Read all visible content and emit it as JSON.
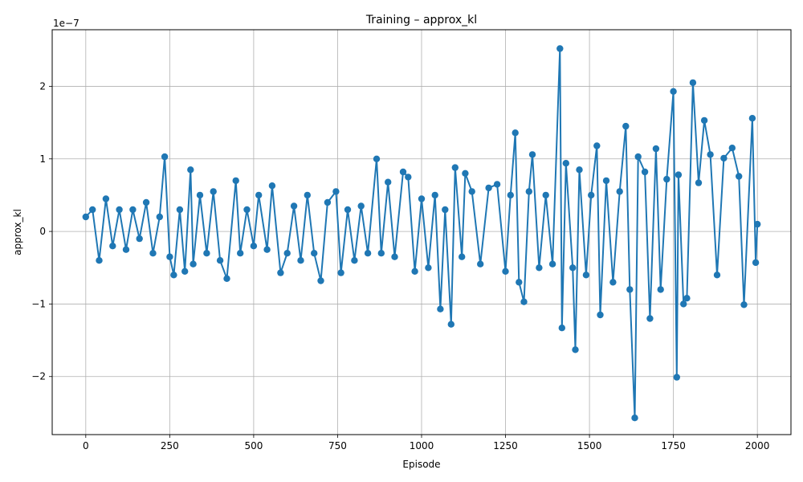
{
  "chart_data": {
    "type": "line",
    "title": "Training – approx_kl",
    "xlabel": "Episode",
    "ylabel": "approx_kl",
    "y_offset_label": "1e−7",
    "y_scale_factor": 1e-07,
    "xlim": [
      -100,
      2100
    ],
    "ylim": [
      -2.8e-07,
      2.78e-07
    ],
    "x_ticks": [
      0,
      250,
      500,
      750,
      1000,
      1250,
      1500,
      1750,
      2000
    ],
    "x_tick_labels": [
      "0",
      "250",
      "500",
      "750",
      "1000",
      "1250",
      "1500",
      "1750",
      "2000"
    ],
    "y_ticks": [
      -2,
      -1,
      0,
      1,
      2
    ],
    "y_tick_labels": [
      "−2",
      "−1",
      "0",
      "1",
      "2"
    ],
    "grid": true,
    "series": [
      {
        "color": "#1f77b4",
        "marker": "circle",
        "x": [
          0,
          20,
          40,
          60,
          80,
          100,
          120,
          140,
          160,
          180,
          200,
          220,
          235,
          250,
          262,
          280,
          295,
          312,
          320,
          340,
          360,
          380,
          400,
          420,
          447,
          460,
          480,
          500,
          515,
          540,
          555,
          580,
          600,
          620,
          640,
          660,
          680,
          700,
          720,
          745,
          760,
          780,
          800,
          820,
          840,
          866,
          880,
          900,
          920,
          945,
          960,
          980,
          1000,
          1020,
          1040,
          1056,
          1070,
          1088,
          1100,
          1120,
          1130,
          1150,
          1175,
          1200,
          1225,
          1250,
          1265,
          1279,
          1290,
          1305,
          1320,
          1330,
          1350,
          1370,
          1390,
          1412,
          1418,
          1430,
          1450,
          1458,
          1470,
          1490,
          1505,
          1522,
          1532,
          1550,
          1570,
          1590,
          1608,
          1620,
          1635,
          1645,
          1665,
          1680,
          1698,
          1712,
          1730,
          1750,
          1760,
          1765,
          1780,
          1790,
          1808,
          1825,
          1842,
          1860,
          1880,
          1900,
          1925,
          1945,
          1960,
          1985,
          1995,
          2000
        ],
        "y": [
          2e-08,
          3e-08,
          -4e-08,
          4.5e-08,
          -2e-08,
          3e-08,
          -2.5e-08,
          3e-08,
          -1e-08,
          4e-08,
          -3e-08,
          2e-08,
          1.03e-07,
          -3.5e-08,
          -6e-08,
          3e-08,
          -5.5e-08,
          8.5e-08,
          -4.5e-08,
          5e-08,
          -3e-08,
          5.5e-08,
          -4e-08,
          -6.5e-08,
          7e-08,
          -3e-08,
          3e-08,
          -2e-08,
          5e-08,
          -2.5e-08,
          6.3e-08,
          -5.7e-08,
          -3e-08,
          3.5e-08,
          -4e-08,
          5e-08,
          -3e-08,
          -6.8e-08,
          4e-08,
          5.5e-08,
          -5.7e-08,
          3e-08,
          -4e-08,
          3.5e-08,
          -3e-08,
          1e-07,
          -3e-08,
          6.8e-08,
          -3.5e-08,
          8.2e-08,
          7.5e-08,
          -5.5e-08,
          4.5e-08,
          -5e-08,
          5e-08,
          -1.07e-07,
          3e-08,
          -1.28e-07,
          8.8e-08,
          -3.5e-08,
          8e-08,
          5.5e-08,
          -4.5e-08,
          6e-08,
          6.5e-08,
          -5.5e-08,
          5e-08,
          1.36e-07,
          -7e-08,
          -9.7e-08,
          5.5e-08,
          1.06e-07,
          -5e-08,
          5e-08,
          -4.5e-08,
          2.52e-07,
          -1.33e-07,
          9.4e-08,
          -5e-08,
          -1.63e-07,
          8.5e-08,
          -6e-08,
          5e-08,
          1.18e-07,
          -1.15e-07,
          7e-08,
          -7e-08,
          5.5e-08,
          1.45e-07,
          -8e-08,
          -2.57e-07,
          1.03e-07,
          8.2e-08,
          -1.2e-07,
          1.14e-07,
          -8e-08,
          7.2e-08,
          1.93e-07,
          -2.01e-07,
          7.8e-08,
          -1e-07,
          -9.2e-08,
          2.05e-07,
          6.7e-08,
          1.53e-07,
          1.06e-07,
          -6e-08,
          1.01e-07,
          1.15e-07,
          7.6e-08,
          -1.01e-07,
          1.56e-07,
          -4.3e-08,
          1e-08
        ]
      }
    ]
  }
}
